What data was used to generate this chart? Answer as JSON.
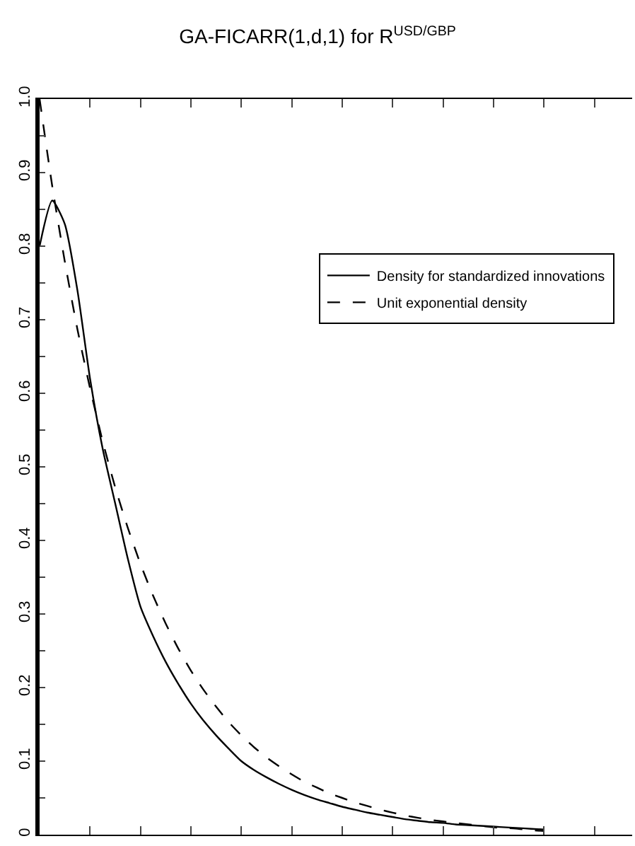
{
  "chart_data": {
    "type": "line",
    "title": "GA-FICARR(1,d,1) for R$^{USD/GBP}$",
    "categories": [
      null,
      null,
      null,
      null,
      null,
      null,
      null,
      null,
      null,
      null,
      null,
      null,
      null,
      null,
      null,
      null,
      null,
      null,
      null,
      null,
      null,
      null,
      null,
      null,
      null,
      null,
      null,
      null,
      null,
      null,
      null,
      null,
      null,
      null,
      null,
      null,
      null,
      null,
      null,
      null,
      null
    ],
    "series": [
      {
        "name": "Density for standardized innovations",
        "color": "#000000",
        "line_style": "solid",
        "values": [
          0.8,
          0.862,
          0.83,
          0.74,
          0.62,
          0.525,
          0.45,
          0.375,
          0.31,
          0.27,
          0.235,
          0.205,
          0.178,
          0.155,
          0.135,
          0.117,
          0.1,
          0.088,
          0.078,
          0.069,
          0.061,
          0.054,
          0.048,
          0.043,
          0.038,
          0.034,
          0.03,
          0.027,
          0.024,
          0.021,
          0.019,
          0.017,
          0.016,
          0.014,
          0.013,
          0.012,
          0.011,
          0.01,
          0.009,
          0.008,
          0.007
        ]
      },
      {
        "name": "Unit exponential density",
        "color": "#000000",
        "line_style": "dashed",
        "values": [
          1.0,
          0.882,
          0.779,
          0.687,
          0.607,
          0.535,
          0.472,
          0.417,
          0.368,
          0.325,
          0.287,
          0.253,
          0.223,
          0.197,
          0.174,
          0.153,
          0.135,
          0.119,
          0.105,
          0.093,
          0.082,
          0.072,
          0.064,
          0.056,
          0.05,
          0.044,
          0.039,
          0.034,
          0.03,
          0.026,
          0.023,
          0.02,
          0.018,
          0.016,
          0.014,
          0.012,
          0.01,
          0.009,
          0.008,
          0.006,
          0.005
        ]
      }
    ],
    "ylim": [
      0,
      1.0
    ],
    "yticks": [
      {
        "value": 0,
        "label": "0"
      },
      {
        "value": 0.05,
        "label": null
      },
      {
        "value": 0.1,
        "label": "0.1"
      },
      {
        "value": 0.15,
        "label": null
      },
      {
        "value": 0.2,
        "label": "0.2"
      },
      {
        "value": 0.25,
        "label": null
      },
      {
        "value": 0.3,
        "label": "0.3"
      },
      {
        "value": 0.35,
        "label": null
      },
      {
        "value": 0.4,
        "label": "0.4"
      },
      {
        "value": 0.45,
        "label": null
      },
      {
        "value": 0.5,
        "label": "0.5"
      },
      {
        "value": 0.55,
        "label": null
      },
      {
        "value": 0.6,
        "label": "0.6"
      },
      {
        "value": 0.65,
        "label": null
      },
      {
        "value": 0.7,
        "label": "0.7"
      },
      {
        "value": 0.75,
        "label": null
      },
      {
        "value": 0.8,
        "label": "0.8"
      },
      {
        "value": 0.85,
        "label": null
      },
      {
        "value": 0.9,
        "label": "0.9"
      },
      {
        "value": 0.95,
        "label": null
      },
      {
        "value": 1.0,
        "label": "1.0"
      }
    ],
    "tick_labels": "y",
    "legend": "top right",
    "marker": "none"
  }
}
